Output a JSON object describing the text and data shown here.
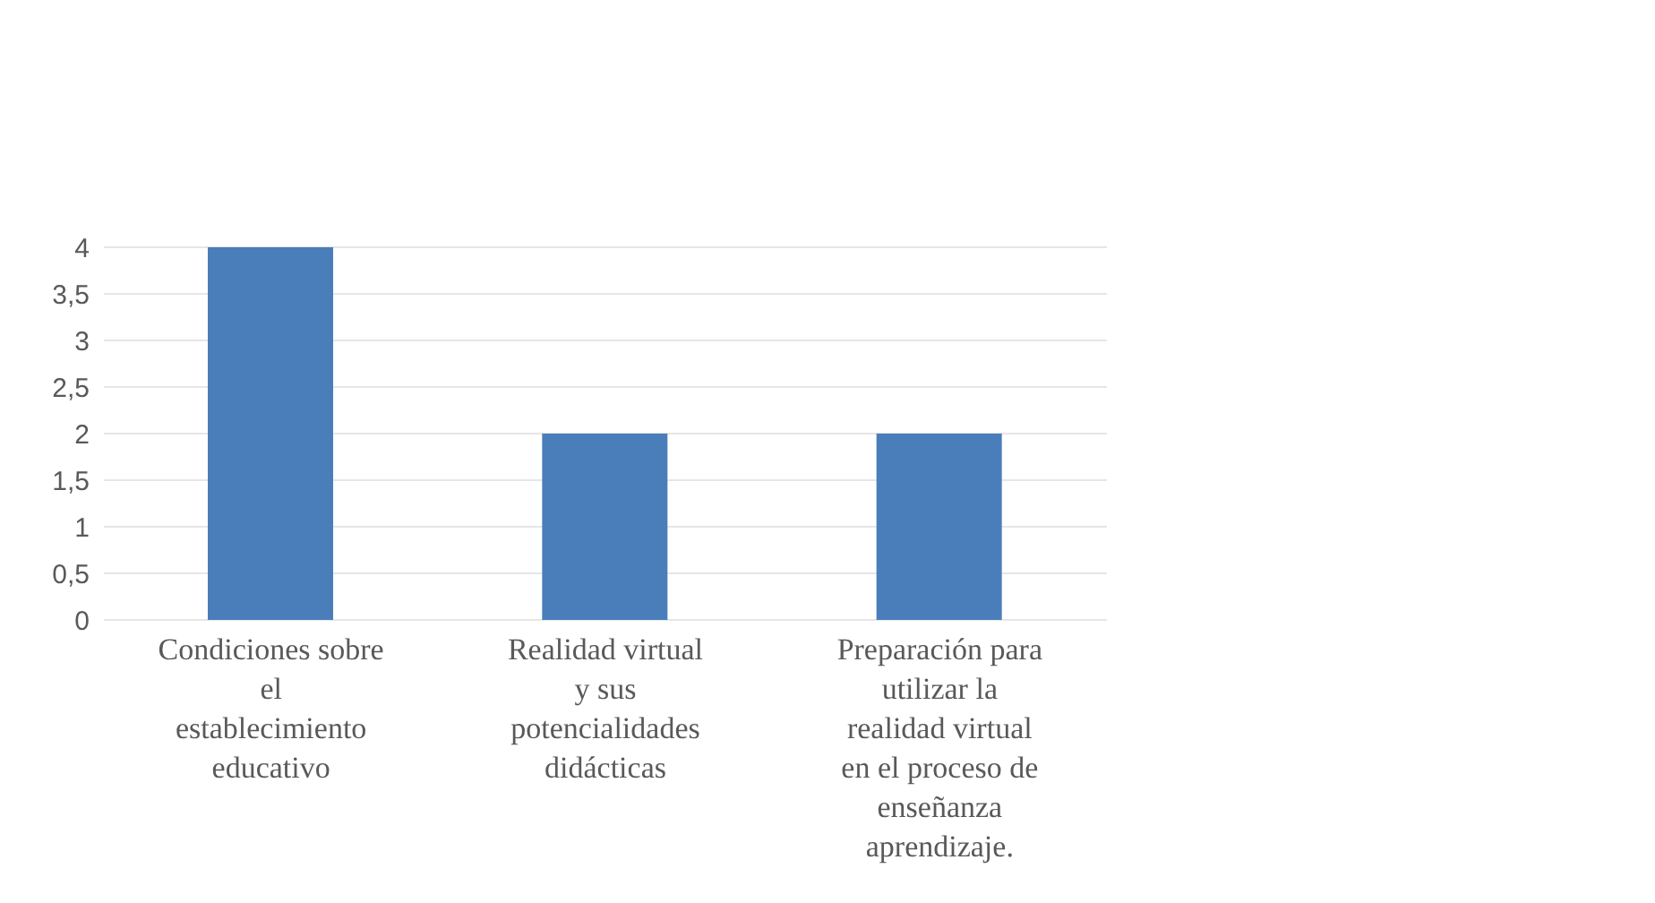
{
  "chart_data": {
    "type": "bar",
    "categories": [
      "Condiciones sobre el establecimiento educativo",
      "Realidad virtual y sus potencialidades didácticas",
      "Preparación para utilizar la realidad virtual en el proceso de enseñanza aprendizaje."
    ],
    "values": [
      4,
      2,
      2
    ],
    "color": "#4a7ebb",
    "ylim": [
      0,
      4
    ],
    "yticks": [
      0,
      {
        "value": 0.5,
        "label": "0,5"
      },
      1,
      {
        "value": 1.5,
        "label": "1,5"
      },
      2,
      {
        "value": 2.5,
        "label": "2,5"
      },
      3,
      {
        "value": 3.5,
        "label": "3,5"
      },
      4
    ],
    "grid": "y",
    "legend": false
  }
}
